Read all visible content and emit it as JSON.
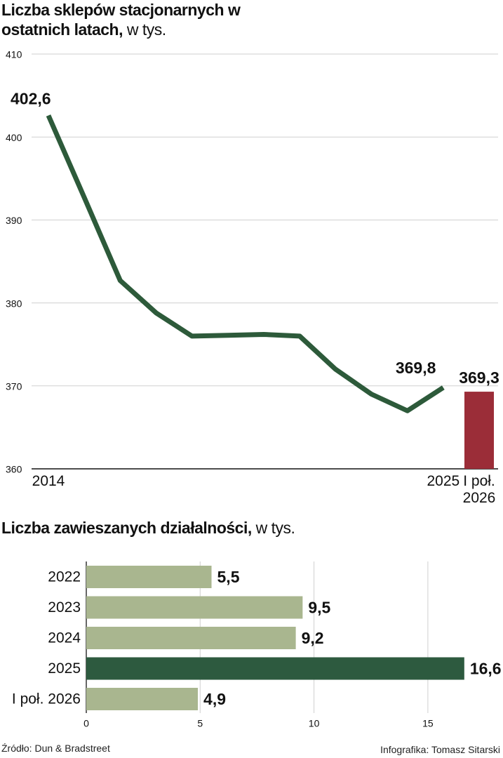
{
  "chart_data": [
    {
      "type": "line",
      "title": "Liczba sklepów stacjonarnych w ostatnich latach,",
      "unit": "w tys.",
      "categories": [
        "2014",
        null,
        null,
        null,
        null,
        null,
        null,
        null,
        null,
        null,
        null,
        "2025",
        "I poł. 2026"
      ],
      "series": [
        {
          "type": "line",
          "color": "#2d5a3a",
          "values": [
            402.6,
            392.7,
            382.7,
            378.8,
            376.0,
            376.1,
            376.2,
            376.0,
            372.0,
            369.0,
            367.0,
            369.8,
            null
          ],
          "value_labels": [
            "402,6",
            null,
            null,
            null,
            null,
            null,
            null,
            null,
            null,
            null,
            null,
            "369,8",
            null
          ]
        },
        {
          "type": "bar",
          "color": "#9b2d38",
          "values": [
            null,
            null,
            null,
            null,
            null,
            null,
            null,
            null,
            null,
            null,
            null,
            null,
            369.3
          ],
          "value_labels": [
            null,
            null,
            null,
            null,
            null,
            null,
            null,
            null,
            null,
            null,
            null,
            null,
            "369,3"
          ]
        }
      ],
      "ylim": [
        360,
        410
      ],
      "yticks": [
        360,
        370,
        380,
        390,
        400,
        410
      ],
      "grid": true
    },
    {
      "type": "hbar",
      "title": "Liczba zawieszanych działalności,",
      "unit": "w tys.",
      "categories": [
        "2022",
        "2023",
        "2024",
        "2025",
        "I poł. 2026"
      ],
      "values": [
        5.5,
        9.5,
        9.2,
        16.6,
        4.9
      ],
      "value_labels": [
        "5,5",
        "9,5",
        "9,2",
        "16,6",
        "4,9"
      ],
      "colors": [
        "#a9b68f",
        "#a9b68f",
        "#a9b68f",
        "#2d5a3f",
        "#a9b68f"
      ],
      "xlim": [
        0,
        18.3
      ],
      "xticks": [
        0,
        5,
        10,
        15
      ],
      "grid": true
    },
    {
      "source": "Źródło: Dun & Bradstreet",
      "credit": "Infografika: Tomasz Sitarski"
    }
  ]
}
